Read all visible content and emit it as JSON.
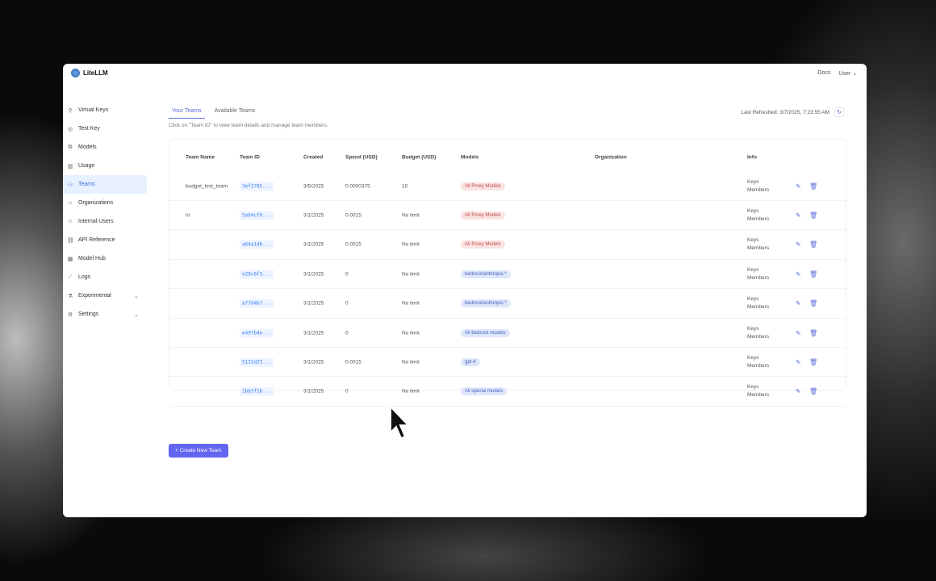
{
  "app": {
    "name": "LiteLLM",
    "docs": "Docs",
    "user": "User"
  },
  "sidebar": {
    "items": [
      {
        "label": "Virtual Keys",
        "icon": "key-icon"
      },
      {
        "label": "Test Key",
        "icon": "play-icon"
      },
      {
        "label": "Models",
        "icon": "models-icon"
      },
      {
        "label": "Usage",
        "icon": "bar-chart-icon"
      },
      {
        "label": "Teams",
        "icon": "team-icon",
        "active": true
      },
      {
        "label": "Organizations",
        "icon": "bank-icon"
      },
      {
        "label": "Internal Users",
        "icon": "user-icon"
      },
      {
        "label": "API Reference",
        "icon": "link-icon"
      },
      {
        "label": "Model Hub",
        "icon": "grid-icon"
      },
      {
        "label": "Logs",
        "icon": "line-chart-icon"
      },
      {
        "label": "Experimental",
        "icon": "flask-icon",
        "expandable": true
      },
      {
        "label": "Settings",
        "icon": "gear-icon",
        "expandable": true
      }
    ]
  },
  "tabs": [
    "Your Teams",
    "Available Teams"
  ],
  "hint": "Click on \"Team ID\" to view team details and manage team members.",
  "last_refreshed": "Last Refreshed: 3/7/2025, 7:23:55 AM",
  "table": {
    "headers": [
      "Team Name",
      "Team ID",
      "Created",
      "Spend (USD)",
      "Budget (USD)",
      "Models",
      "Organization",
      "Info"
    ],
    "rows": [
      {
        "name": "budget_test_team",
        "id": "3ef2785...",
        "created": "3/5/2025",
        "spend": "0.0000375",
        "budget": "10",
        "model": "All Proxy Models",
        "model_color": "red"
      },
      {
        "name": "hi",
        "id": "5a64cf0...",
        "created": "3/1/2025",
        "spend": "0.0015",
        "budget": "No limit",
        "model": "All Proxy Models",
        "model_color": "red"
      },
      {
        "name": "",
        "id": "a64a1d6...",
        "created": "3/1/2025",
        "spend": "0.0015",
        "budget": "No limit",
        "model": "All Proxy Models",
        "model_color": "red"
      },
      {
        "name": "",
        "id": "e29c6f3...",
        "created": "3/1/2025",
        "spend": "0",
        "budget": "No limit",
        "model": "bedrock/anthropic.*",
        "model_color": "blue"
      },
      {
        "name": "",
        "id": "a77d4b7...",
        "created": "3/1/2025",
        "spend": "0",
        "budget": "No limit",
        "model": "bedrock/anthropic.*",
        "model_color": "blue"
      },
      {
        "name": "",
        "id": "e497b4e...",
        "created": "3/1/2025",
        "spend": "0",
        "budget": "No limit",
        "model": "All bedrock models",
        "model_color": "blue"
      },
      {
        "name": "",
        "id": "5132d23...",
        "created": "3/1/2025",
        "spend": "0.0015",
        "budget": "No limit",
        "model": "gpt-4",
        "model_color": "blue"
      },
      {
        "name": "",
        "id": "2bb3f2b...",
        "created": "3/1/2025",
        "spend": "0",
        "budget": "No limit",
        "model": "All openai models",
        "model_color": "blue"
      }
    ],
    "info_keys": "Keys",
    "info_members": "Members"
  },
  "create_button": "+ Create New Team"
}
